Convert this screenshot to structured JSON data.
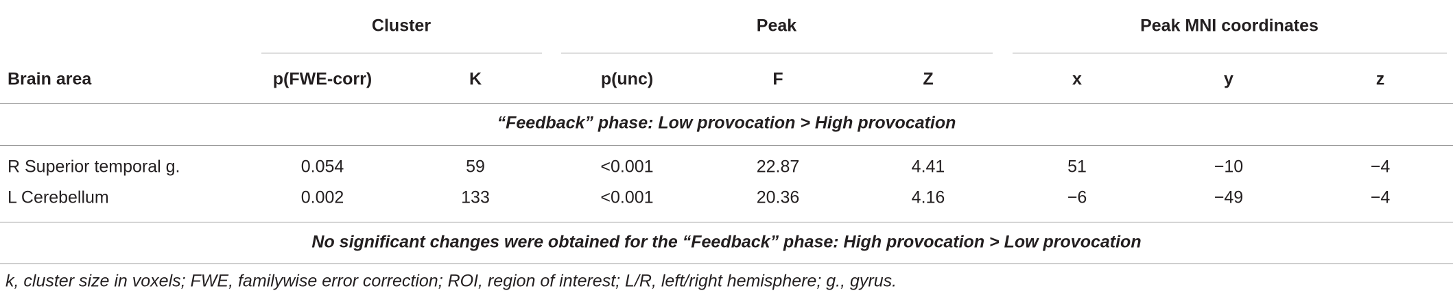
{
  "table": {
    "groups": [
      "Cluster",
      "Peak",
      "Peak MNI coordinates"
    ],
    "columns": [
      "Brain area",
      "p(FWE-corr)",
      "K",
      "p(unc)",
      "F",
      "Z",
      "x",
      "y",
      "z"
    ],
    "section": "“Feedback” phase: Low provocation > High provocation",
    "rows": [
      [
        "R Superior temporal g.",
        "0.054",
        "59",
        "<0.001",
        "22.87",
        "4.41",
        "51",
        "−10",
        "−4"
      ],
      [
        "L Cerebellum",
        "0.002",
        "133",
        "<0.001",
        "20.36",
        "4.16",
        "−6",
        "−49",
        "−4"
      ]
    ],
    "note": "No significant changes were obtained for the “Feedback” phase: High provocation > Low provocation",
    "footnote": "k, cluster size in voxels; FWE, familywise error correction; ROI, region of interest; L/R, left/right hemisphere; g., gyrus."
  }
}
